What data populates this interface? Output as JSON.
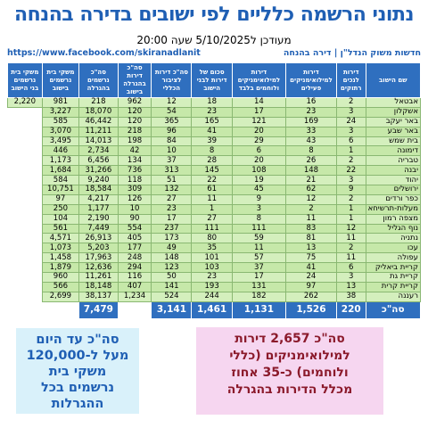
{
  "title": "נתוני הרשמה כלליים לפי ישובים בדירה בהנחה",
  "updated": "מעודכן ל5/10/2025 שעה 20:00",
  "source_left": "https://www.facebook.com/skiranadlanit",
  "source_right": "חדשות משוק הנדל\"ן | דירה בהנחה",
  "headers": [
    "שם הישוב",
    "דירות לנכים רתוקים",
    "דירות למילואימניקים פעילים",
    "דירות למילואימניקים ולוחמים בלבד",
    "סכום של דירות לבני הישוב",
    "סה\"כ דירות לציבור הכללי",
    "סה\"כ דירות בהגרלה בישוב",
    "סה\"כ נרשמים בהגרלה",
    "משקי בית נרשמים בישוב",
    "משקי בית נרשמים בני הישוב"
  ],
  "rows": [
    [
      "אבטאל",
      "2",
      "16",
      "14",
      "18",
      "12",
      "962",
      "218",
      "981",
      "2,220"
    ],
    [
      "אשקלון",
      "3",
      "23",
      "17",
      "23",
      "54",
      "120",
      "18,070",
      "3,227"
    ],
    [
      "באר יעקב",
      "24",
      "169",
      "121",
      "165",
      "365",
      "120",
      "46,442",
      "585"
    ],
    [
      "באר שבע",
      "3",
      "33",
      "20",
      "41",
      "96",
      "218",
      "11,211",
      "3,070"
    ],
    [
      "בית שמש",
      "6",
      "43",
      "29",
      "39",
      "84",
      "198",
      "14,013",
      "3,495"
    ],
    [
      "דימונה",
      "1",
      "8",
      "6",
      "8",
      "10",
      "42",
      "2,734",
      "446"
    ],
    [
      "טבריה",
      "2",
      "26",
      "20",
      "28",
      "37",
      "134",
      "6,456",
      "1,173"
    ],
    [
      "יבנה",
      "22",
      "148",
      "108",
      "145",
      "313",
      "736",
      "31,266",
      "1,684"
    ],
    [
      "יהוד",
      "3",
      "21",
      "19",
      "22",
      "51",
      "118",
      "9,240",
      "584"
    ],
    [
      "ירושלים",
      "9",
      "62",
      "45",
      "61",
      "132",
      "309",
      "18,584",
      "10,751"
    ],
    [
      "כפר ורדים",
      "2",
      "12",
      "9",
      "11",
      "27",
      "126",
      "4,217",
      "97"
    ],
    [
      "מעלות-תרשיחא",
      "1",
      "2",
      "3",
      "1",
      "23",
      "10",
      "1,177",
      "250"
    ],
    [
      "מצפה רמון",
      "1",
      "11",
      "8",
      "27",
      "17",
      "90",
      "2,190",
      "104"
    ],
    [
      "נוף הגליל",
      "12",
      "83",
      "111",
      "111",
      "237",
      "554",
      "7,449",
      "561"
    ],
    [
      "נתניה",
      "11",
      "81",
      "59",
      "80",
      "173",
      "405",
      "26,913",
      "4,571"
    ],
    [
      "עכו",
      "2",
      "13",
      "11",
      "35",
      "49",
      "177",
      "5,203",
      "1,073"
    ],
    [
      "עפולה",
      "11",
      "75",
      "57",
      "101",
      "148",
      "248",
      "17,963",
      "1,458"
    ],
    [
      "קריית ביאליק",
      "6",
      "41",
      "37",
      "103",
      "123",
      "294",
      "12,636",
      "1,879"
    ],
    [
      "קריית גת",
      "3",
      "24",
      "17",
      "23",
      "50",
      "116",
      "11,261",
      "960"
    ],
    [
      "קריית קרית",
      "13",
      "97",
      "131",
      "193",
      "141",
      "407",
      "18,148",
      "566"
    ],
    [
      "רעננה",
      "38",
      "262",
      "182",
      "244",
      "524",
      "1,234",
      "38,137",
      "2,699"
    ]
  ],
  "totals": [
    "סה\"כ",
    "220",
    "1,526",
    "1,131",
    "1,461",
    "3,141",
    "",
    "7,479",
    "",
    ""
  ],
  "box_left": [
    "סה\"כ עד היום",
    "מעל ל-120,000",
    "משקי בית",
    "נרשמים בכל",
    "ההגרלות"
  ],
  "box_right": [
    "סה\"כ 2,657 דירות",
    "למילואימניקים (כללי",
    "ולוחמים) כ-35 אחוז",
    "מכלל הדירות בהגרלה"
  ]
}
